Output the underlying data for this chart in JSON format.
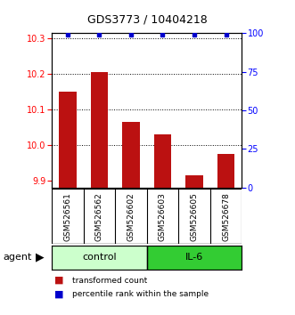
{
  "title": "GDS3773 / 10404218",
  "samples": [
    "GSM526561",
    "GSM526562",
    "GSM526602",
    "GSM526603",
    "GSM526605",
    "GSM526678"
  ],
  "bar_values": [
    10.15,
    10.205,
    10.065,
    10.03,
    9.915,
    9.975
  ],
  "percentile_values": [
    99,
    99,
    99,
    99,
    99,
    99
  ],
  "bar_color": "#bb1111",
  "dot_color": "#0000cc",
  "ylim_left": [
    9.88,
    10.315
  ],
  "ylim_right": [
    0,
    100
  ],
  "yticks_left": [
    9.9,
    10.0,
    10.1,
    10.2,
    10.3
  ],
  "yticks_right": [
    0,
    25,
    50,
    75,
    100
  ],
  "control_color": "#ccffcc",
  "il6_color": "#33cc33",
  "legend_bar_label": "transformed count",
  "legend_dot_label": "percentile rank within the sample",
  "bar_width": 0.55,
  "baseline": 9.88,
  "title_fontsize": 9,
  "tick_fontsize": 7,
  "label_fontsize": 6.5,
  "group_fontsize": 8,
  "legend_fontsize": 6.5
}
